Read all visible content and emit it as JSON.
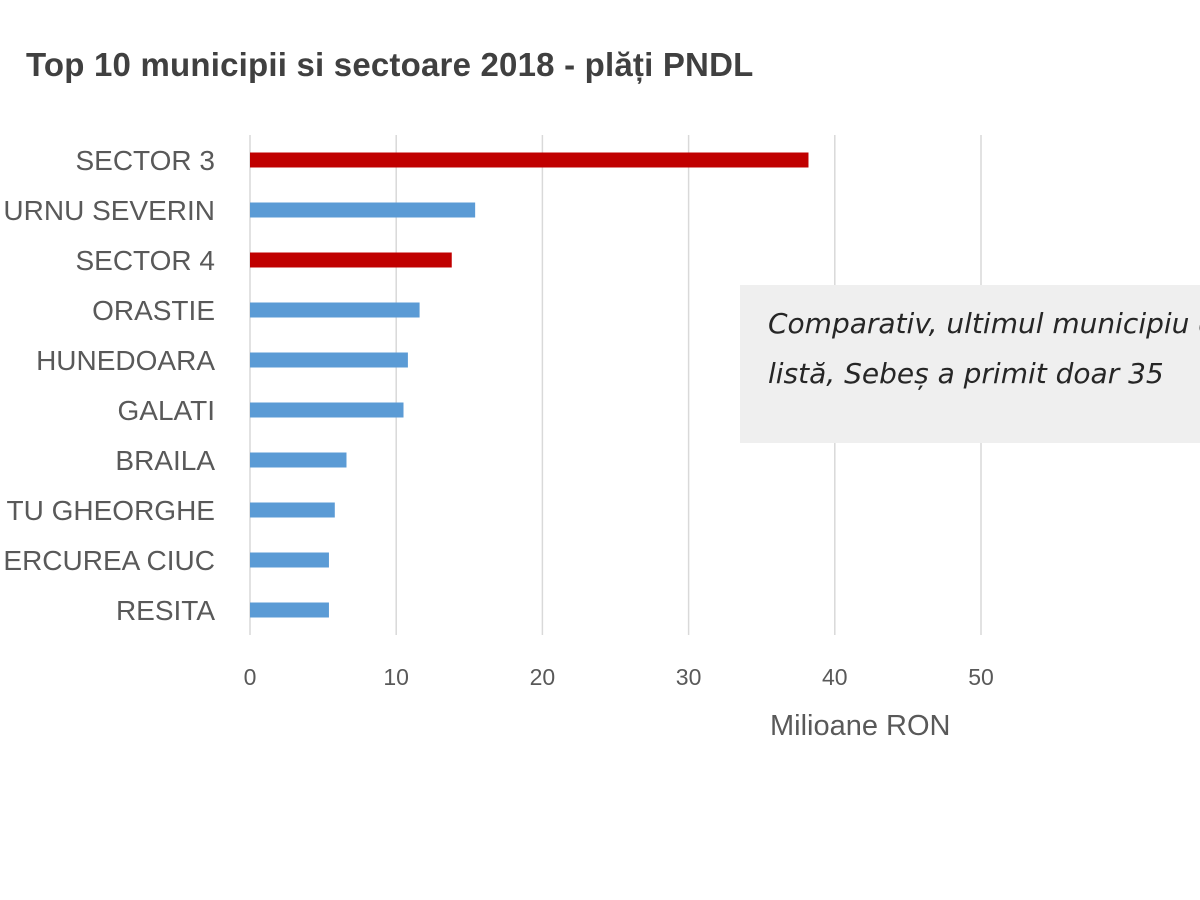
{
  "chart_data": {
    "type": "bar",
    "orientation": "horizontal",
    "title": "Top 10 municipii si sectoare 2018 - plăți PNDL",
    "categories": [
      "SECTOR 3",
      "TURNU SEVERIN",
      "SECTOR 4",
      "ORASTIE",
      "HUNEDOARA",
      "GALATI",
      "BRAILA",
      "SFANTU GHEORGHE",
      "MIERCUREA CIUC",
      "RESITA"
    ],
    "category_labels_visible": [
      "SECTOR 3",
      "URNU SEVERIN",
      "SECTOR 4",
      "ORASTIE",
      "HUNEDOARA",
      "GALATI",
      "BRAILA",
      "TU GHEORGHE",
      "ERCUREA CIUC",
      "RESITA"
    ],
    "values": [
      38.2,
      15.4,
      13.8,
      11.6,
      10.8,
      10.5,
      6.6,
      5.8,
      5.4,
      5.4
    ],
    "highlighted": [
      true,
      false,
      true,
      false,
      false,
      false,
      false,
      false,
      false,
      false
    ],
    "xlabel": "Milioane RON",
    "ylabel": "",
    "xlim": [
      0,
      50
    ],
    "xticks": [
      0,
      10,
      20,
      30,
      40,
      50
    ],
    "xtick_labels": [
      "0",
      "10",
      "20",
      "30",
      "40",
      "50"
    ],
    "grid": true,
    "colors": {
      "default": "#5b9bd5",
      "highlight": "#c00000",
      "grid": "#d9d9d9",
      "text": "#595959",
      "note_bg": "#efefef"
    }
  },
  "annotation": {
    "line1": "Comparativ, ultimul municipiu din",
    "line2": "listă, Sebeș a primit doar 35"
  }
}
